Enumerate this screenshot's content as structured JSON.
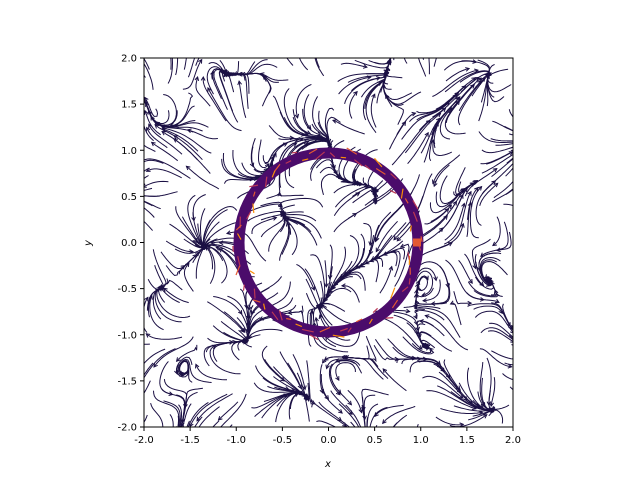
{
  "chart_data": {
    "type": "streamplot",
    "xlabel": "x",
    "ylabel": "y",
    "xlim": [
      -2.0,
      2.0
    ],
    "ylim": [
      -2.0,
      2.0
    ],
    "xticks": [
      "-2.0",
      "-1.5",
      "-1.0",
      "-0.5",
      "0.0",
      "0.5",
      "1.0",
      "1.5",
      "2.0"
    ],
    "yticks": [
      "-2.0",
      "-1.5",
      "-1.0",
      "-0.5",
      "0.0",
      "0.5",
      "1.0",
      "1.5",
      "2.0"
    ],
    "xtick_values": [
      -2.0,
      -1.5,
      -1.0,
      -0.5,
      0.0,
      0.5,
      1.0,
      1.5,
      2.0
    ],
    "ytick_values": [
      -2.0,
      -1.5,
      -1.0,
      -0.5,
      0.0,
      0.5,
      1.0,
      1.5,
      2.0
    ],
    "grid": false,
    "ring": {
      "center": [
        0.0,
        0.0
      ],
      "radius": 0.97,
      "color": "#4b0c6b",
      "highlight_colors": [
        "#e35933",
        "#f98e09",
        "#bc3754",
        "#ba3655"
      ]
    },
    "streamline_color": "#1b1044",
    "colormap": "inferno"
  }
}
